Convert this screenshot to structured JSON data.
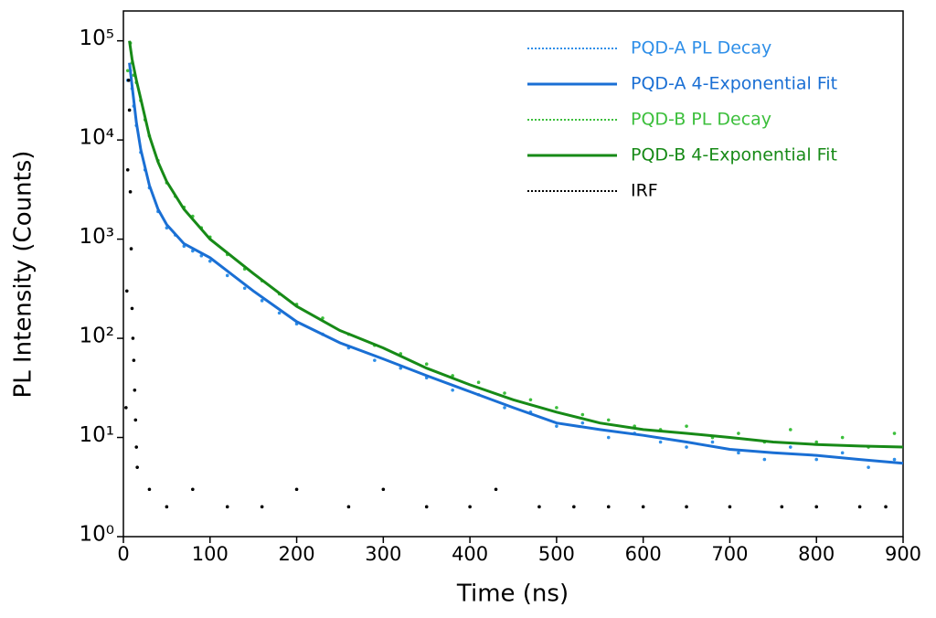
{
  "chart_data": {
    "type": "line",
    "x_label": "Time (ns)",
    "y_label": "PL Intensity (Counts)",
    "xlim": [
      0,
      900
    ],
    "xticks": [
      0,
      100,
      200,
      300,
      400,
      500,
      600,
      700,
      800,
      900
    ],
    "ylim": [
      1,
      200000
    ],
    "yscale": "log",
    "yticks": [
      {
        "value": 1,
        "label": "10⁰"
      },
      {
        "value": 10,
        "label": "10¹"
      },
      {
        "value": 100,
        "label": "10²"
      },
      {
        "value": 1000,
        "label": "10³"
      },
      {
        "value": 10000,
        "label": "10⁴"
      },
      {
        "value": 100000,
        "label": "10⁵"
      }
    ],
    "legend": "upper right",
    "series": [
      {
        "name": "PQD-A PL Decay",
        "color": "#2f8fe8",
        "mode": "scatter",
        "style": "dotted",
        "x": [
          5,
          8,
          10,
          12,
          15,
          20,
          25,
          30,
          40,
          50,
          60,
          70,
          80,
          90,
          100,
          120,
          140,
          160,
          180,
          200,
          230,
          260,
          290,
          320,
          350,
          380,
          410,
          440,
          470,
          500,
          530,
          560,
          590,
          620,
          650,
          680,
          710,
          740,
          770,
          800,
          830,
          860,
          890
        ],
        "values": [
          40000,
          50000,
          33000,
          22000,
          14000,
          7500,
          5000,
          3300,
          1900,
          1300,
          1100,
          850,
          760,
          680,
          600,
          430,
          320,
          240,
          180,
          140,
          110,
          80,
          60,
          50,
          40,
          30,
          27,
          20,
          18,
          13,
          14,
          10,
          11,
          9,
          8,
          9,
          7,
          6,
          8,
          6,
          7,
          5,
          6
        ]
      },
      {
        "name": "PQD-A 4-Exponential Fit",
        "color": "#1a6fd4",
        "mode": "line",
        "style": "solid",
        "x": [
          7,
          10,
          15,
          20,
          30,
          40,
          50,
          70,
          100,
          150,
          200,
          250,
          300,
          350,
          400,
          450,
          500,
          550,
          600,
          650,
          700,
          750,
          800,
          850,
          900
        ],
        "values": [
          60000,
          35000,
          15000,
          8000,
          3500,
          2000,
          1400,
          900,
          650,
          300,
          147,
          90,
          62,
          42,
          29,
          20,
          14,
          12,
          10.5,
          9,
          7.6,
          7,
          6.6,
          6,
          5.5
        ]
      },
      {
        "name": "PQD-B PL Decay",
        "color": "#3cbf3c",
        "mode": "scatter",
        "style": "dotted",
        "x": [
          5,
          8,
          10,
          12,
          15,
          20,
          25,
          30,
          40,
          50,
          60,
          70,
          80,
          90,
          100,
          120,
          140,
          160,
          180,
          200,
          230,
          260,
          290,
          320,
          350,
          380,
          410,
          440,
          470,
          500,
          530,
          560,
          590,
          620,
          650,
          680,
          710,
          740,
          770,
          800,
          830,
          860,
          890
        ],
        "values": [
          50000,
          95000,
          60000,
          45000,
          38000,
          25000,
          16000,
          11000,
          6200,
          3700,
          2700,
          2100,
          1700,
          1300,
          1050,
          700,
          500,
          380,
          280,
          220,
          160,
          110,
          85,
          70,
          55,
          42,
          36,
          28,
          24,
          20,
          17,
          15,
          13,
          12,
          13,
          10,
          11,
          9,
          12,
          9,
          10,
          8,
          11
        ]
      },
      {
        "name": "PQD-B 4-Exponential Fit",
        "color": "#178a17",
        "mode": "line",
        "style": "solid",
        "x": [
          7,
          10,
          15,
          20,
          30,
          40,
          50,
          70,
          100,
          150,
          200,
          250,
          300,
          350,
          400,
          450,
          500,
          550,
          600,
          650,
          700,
          750,
          800,
          850,
          900
        ],
        "values": [
          100000,
          65000,
          40000,
          26000,
          11000,
          6000,
          3800,
          2000,
          1000,
          450,
          210,
          120,
          80,
          50,
          34,
          24,
          18,
          14,
          12,
          11,
          10,
          9,
          8.5,
          8.2,
          8
        ]
      },
      {
        "name": "IRF",
        "color": "#000000",
        "mode": "scatter",
        "style": "dotted",
        "x": [
          3,
          4,
          5,
          6,
          7,
          8,
          9,
          10,
          11,
          12,
          13,
          14,
          15,
          16,
          30,
          50,
          80,
          120,
          160,
          200,
          260,
          300,
          350,
          400,
          430,
          480,
          520,
          560,
          600,
          650,
          700,
          760,
          800,
          850,
          880
        ],
        "values": [
          20,
          300,
          5000,
          40000,
          20000,
          3000,
          800,
          200,
          100,
          60,
          30,
          15,
          8,
          5,
          3,
          2,
          3,
          2,
          2,
          3,
          2,
          3,
          2,
          2,
          3,
          2,
          2,
          2,
          2,
          2,
          2,
          2,
          2,
          2,
          2
        ]
      }
    ]
  }
}
